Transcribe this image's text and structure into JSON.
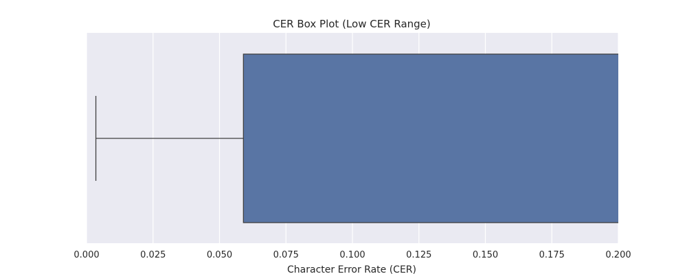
{
  "chart_data": {
    "type": "box",
    "orientation": "horizontal",
    "title": "CER Box Plot (Low CER Range)",
    "xlabel": "Character Error Rate (CER)",
    "ylabel": "",
    "xlim": [
      0.0,
      0.2
    ],
    "x_ticks": [
      0.0,
      0.025,
      0.05,
      0.075,
      0.1,
      0.125,
      0.15,
      0.175,
      0.2
    ],
    "x_tick_labels": [
      "0.000",
      "0.025",
      "0.050",
      "0.075",
      "0.100",
      "0.125",
      "0.150",
      "0.175",
      "0.200"
    ],
    "grid": "vertical",
    "box": {
      "whisker_low": 0.0035,
      "q1": 0.059,
      "box_continues_past_axis": true
    }
  },
  "colors": {
    "background": "#eaeaf2",
    "grid": "#ffffff",
    "box_fill": "#5975a4",
    "line": "#3f3f3f",
    "text": "#262626"
  }
}
